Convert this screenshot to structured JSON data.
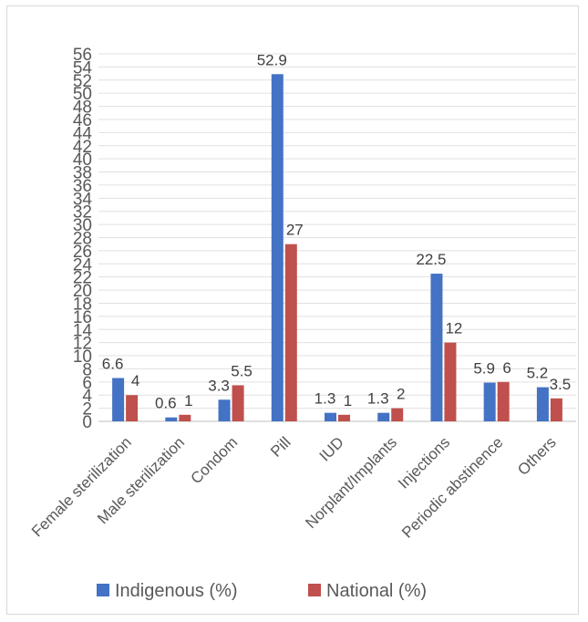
{
  "chart_data": {
    "type": "bar",
    "title": "",
    "xlabel": "",
    "ylabel": "",
    "categories": [
      "Female sterilization",
      "Male sterilization",
      "Condom",
      "Pill",
      "IUD",
      "Norplant/Implants",
      "Injections",
      "Periodic abstinence",
      "Others"
    ],
    "series": [
      {
        "name": "Indigenous (%)",
        "color": "#4472c4",
        "values": [
          6.6,
          0.6,
          3.3,
          52.9,
          1.3,
          1.3,
          22.5,
          5.9,
          5.2
        ]
      },
      {
        "name": "National (%)",
        "color": "#c0504d",
        "values": [
          4,
          1,
          5.5,
          27,
          1,
          2,
          12,
          6,
          3.5
        ]
      }
    ],
    "yticks": [
      "0",
      "2",
      "4",
      "6",
      "8",
      "10",
      "12",
      "14",
      "16",
      "18",
      "20",
      "22",
      "24",
      "26",
      "28",
      "30",
      "32",
      "34",
      "36",
      "38",
      "40",
      "42",
      "44",
      "46",
      "48",
      "50",
      "52",
      "54",
      "56"
    ],
    "ylim": [
      0,
      56
    ],
    "grid": true,
    "legend": "bottom"
  }
}
